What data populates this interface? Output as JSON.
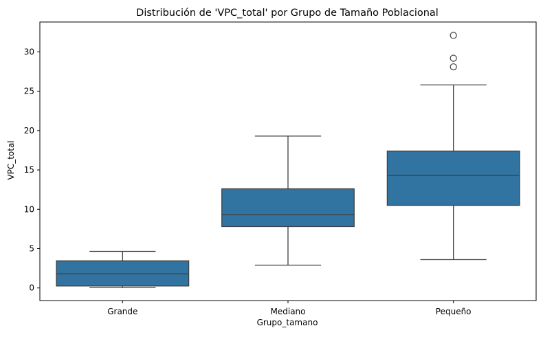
{
  "chart_data": {
    "type": "box",
    "title": "Distribución de 'VPC_total' por Grupo de Tamaño Poblacional",
    "xlabel": "Grupo_tamano",
    "ylabel": "VPC_total",
    "ylim": [
      -1.6,
      33.8
    ],
    "yticks": [
      0,
      5,
      10,
      15,
      20,
      25,
      30
    ],
    "grid": false,
    "categories": [
      "Grande",
      "Mediano",
      "Pequeño"
    ],
    "boxes": [
      {
        "category": "Grande",
        "whisker_low": 0.05,
        "q1": 0.25,
        "median": 1.8,
        "q3": 3.45,
        "whisker_high": 4.65,
        "outliers": []
      },
      {
        "category": "Mediano",
        "whisker_low": 2.9,
        "q1": 7.8,
        "median": 9.3,
        "q3": 12.6,
        "whisker_high": 19.3,
        "outliers": []
      },
      {
        "category": "Pequeño",
        "whisker_low": 3.6,
        "q1": 10.5,
        "median": 14.3,
        "q3": 17.4,
        "whisker_high": 25.8,
        "outliers": [
          28.1,
          29.2,
          32.1
        ]
      }
    ],
    "colors": {
      "box_fill": "#3274a1",
      "line": "#3f3f3f",
      "axis": "#000000"
    }
  }
}
